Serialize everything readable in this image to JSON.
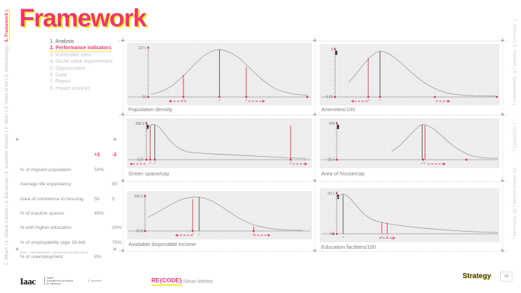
{
  "header": {
    "title": "Framework"
  },
  "rails": {
    "left_before": "1. What? | 2. Global Context | 3. Barcelona | 4. Scientific Interest | 3. How? | 4. State of Art | 5. Methodology | ",
    "left_active": "6. Framework |",
    "right_top": "7. Protocol |  8. Platform |  9. Stakeholders |",
    "right_mid": "... | RE(CODE) |...",
    "right_bottom": "14. Global outlook |  15. Reflection |",
    "page_number": "26"
  },
  "menu": {
    "items": [
      {
        "label": "1. Analysis",
        "state": "first"
      },
      {
        "label": "2. Performance indicators",
        "state": "active"
      },
      {
        "label": "3. Vulnerable sites",
        "state": "dim"
      },
      {
        "label": "4. Social value improvement",
        "state": "dim"
      },
      {
        "label": "5. Opportunities",
        "state": "dim"
      },
      {
        "label": "6. Case",
        "state": "dim"
      },
      {
        "label": "7. Report",
        "state": "dim"
      },
      {
        "label": "8. Impact analysis",
        "state": "dim"
      }
    ]
  },
  "table": {
    "col_plus": "+2",
    "col_minus": "-2",
    "rows": [
      {
        "label": "% of migrant population",
        "plus2": "50%",
        "minus2": ""
      },
      {
        "label": "Average life expectancy",
        "plus2": "",
        "minus2": "80"
      },
      {
        "label": "Area of commerce to housing",
        "plus2": "50",
        "minus2": "5"
      },
      {
        "label": "% of inactive spaces",
        "plus2": "40%",
        "minus2": ""
      },
      {
        "label": "% with higher education",
        "plus2": "",
        "minus2": "20%"
      },
      {
        "label": "% of employability (age 16-64)",
        "plus2": "",
        "minus2": "70%"
      },
      {
        "label": "% of unemployment",
        "plus2": "8%",
        "minus2": ""
      }
    ],
    "source": "Data : OpendataBCN, Ajuntament de Barcelona"
  },
  "footer": {
    "logo_text": "Iaac",
    "logo_sub_lines": [
      "institut",
      "d'arquitectura avançada",
      "de catalunya"
    ],
    "logo_sub2": "barcelona",
    "brand": "RE{CODE}",
    "author": "Nihar Mehta",
    "strategy": "Strategy"
  },
  "colors": {
    "accent_pink": "#e8396b",
    "accent_yellow": "#f7e843",
    "marker_red": "#d9304b",
    "arrow_pink": "#ec2d7d",
    "curve_gray": "#a3a3a3",
    "dark_line": "#4a4a4a",
    "panel_bg": "#ededed"
  },
  "chart_data": [
    {
      "id": "population-density",
      "title": "Population density",
      "type": "distribution",
      "y_top": "1371",
      "y_bottom": "19",
      "axis_x": 0.115,
      "smudge": false,
      "curve": [
        [
          0.13,
          0.05
        ],
        [
          0.17,
          0.09
        ],
        [
          0.21,
          0.15
        ],
        [
          0.25,
          0.24
        ],
        [
          0.29,
          0.37
        ],
        [
          0.33,
          0.52
        ],
        [
          0.37,
          0.67
        ],
        [
          0.41,
          0.81
        ],
        [
          0.45,
          0.9
        ],
        [
          0.48,
          0.94
        ],
        [
          0.5,
          0.95
        ],
        [
          0.53,
          0.93
        ],
        [
          0.57,
          0.87
        ],
        [
          0.61,
          0.77
        ],
        [
          0.65,
          0.63
        ],
        [
          0.69,
          0.49
        ],
        [
          0.73,
          0.35
        ],
        [
          0.77,
          0.24
        ],
        [
          0.81,
          0.15
        ],
        [
          0.85,
          0.1
        ],
        [
          0.9,
          0.06
        ],
        [
          0.95,
          0.04
        ],
        [
          0.975,
          0.035
        ]
      ],
      "vlines": [
        {
          "x": 0.5,
          "h": 0.95,
          "c": "dark"
        },
        {
          "x": 0.305,
          "h": 0.44,
          "c": "red"
        },
        {
          "x": 0.645,
          "h": 0.6,
          "c": "red"
        }
      ],
      "dots": [
        0.115,
        0.305,
        0.5,
        0.645,
        0.975
      ],
      "arrows": [
        {
          "x1": 0.32,
          "x2": 0.225,
          "dir": "left"
        },
        {
          "x1": 0.657,
          "x2": 0.745,
          "dir": "right"
        }
      ]
    },
    {
      "id": "amenities",
      "title": "Amenities/100",
      "type": "distribution",
      "y_top": "9",
      "y_bottom": "0.03",
      "axis_x": 0.085,
      "smudge": true,
      "curve": [
        [
          0.16,
          0.3
        ],
        [
          0.19,
          0.42
        ],
        [
          0.22,
          0.56
        ],
        [
          0.25,
          0.7
        ],
        [
          0.28,
          0.82
        ],
        [
          0.31,
          0.91
        ],
        [
          0.335,
          0.945
        ],
        [
          0.36,
          0.93
        ],
        [
          0.39,
          0.88
        ],
        [
          0.42,
          0.8
        ],
        [
          0.46,
          0.68
        ],
        [
          0.5,
          0.54
        ],
        [
          0.54,
          0.41
        ],
        [
          0.58,
          0.3
        ],
        [
          0.62,
          0.21
        ],
        [
          0.66,
          0.14
        ],
        [
          0.7,
          0.09
        ],
        [
          0.75,
          0.055
        ],
        [
          0.8,
          0.035
        ],
        [
          0.86,
          0.025
        ],
        [
          0.92,
          0.02
        ],
        [
          0.98,
          0.018
        ]
      ],
      "vlines": [
        {
          "x": 0.27,
          "h": 0.8,
          "c": "red"
        },
        {
          "x": 0.335,
          "h": 0.945,
          "c": "dark"
        }
      ],
      "dots": [
        0.085,
        0.27,
        0.335,
        0.64,
        0.985
      ],
      "arrows": [
        {
          "x1": 0.265,
          "x2": 0.175,
          "dir": "left"
        },
        {
          "x1": 0.645,
          "x2": 0.725,
          "dir": "right"
        }
      ]
    },
    {
      "id": "green-space",
      "title": "Green space/cap",
      "type": "distribution",
      "y_top": "388.9",
      "y_bottom": "0.57",
      "axis_x": 0.105,
      "smudge": true,
      "curve": [
        [
          0.105,
          0.78
        ],
        [
          0.12,
          0.9
        ],
        [
          0.135,
          0.95
        ],
        [
          0.155,
          0.94
        ],
        [
          0.175,
          0.87
        ],
        [
          0.2,
          0.72
        ],
        [
          0.23,
          0.53
        ],
        [
          0.26,
          0.38
        ],
        [
          0.29,
          0.28
        ],
        [
          0.32,
          0.22
        ],
        [
          0.36,
          0.19
        ],
        [
          0.42,
          0.17
        ],
        [
          0.5,
          0.145
        ],
        [
          0.58,
          0.125
        ],
        [
          0.66,
          0.105
        ],
        [
          0.74,
          0.085
        ],
        [
          0.82,
          0.065
        ],
        [
          0.9,
          0.045
        ],
        [
          0.97,
          0.03
        ]
      ],
      "vlines": [
        {
          "x": 0.125,
          "h": 0.92,
          "c": "red"
        },
        {
          "x": 0.15,
          "h": 0.94,
          "c": "dark"
        },
        {
          "x": 0.885,
          "h": 0.92,
          "c": "red"
        }
      ],
      "dots": [
        0.105,
        0.125,
        0.15,
        0.885
      ],
      "arrows": [
        {
          "x1": 0.1,
          "x2": 0.015,
          "dir": "left"
        },
        {
          "x1": 0.895,
          "x2": 0.975,
          "dir": "right"
        }
      ]
    },
    {
      "id": "area-house",
      "title": "Area of house/cap",
      "type": "distribution",
      "y_top": "504",
      "y_bottom": "20.3",
      "axis_x": 0.095,
      "smudge": true,
      "curve": [
        [
          0.4,
          0.22
        ],
        [
          0.44,
          0.36
        ],
        [
          0.47,
          0.5
        ],
        [
          0.5,
          0.66
        ],
        [
          0.53,
          0.81
        ],
        [
          0.555,
          0.91
        ],
        [
          0.575,
          0.95
        ],
        [
          0.6,
          0.92
        ],
        [
          0.63,
          0.84
        ],
        [
          0.66,
          0.72
        ],
        [
          0.7,
          0.55
        ],
        [
          0.74,
          0.38
        ],
        [
          0.78,
          0.25
        ],
        [
          0.82,
          0.15
        ],
        [
          0.86,
          0.09
        ],
        [
          0.9,
          0.055
        ],
        [
          0.94,
          0.04
        ],
        [
          0.99,
          0.035
        ]
      ],
      "vlines": [
        {
          "x": 0.57,
          "h": 0.95,
          "c": "dark"
        },
        {
          "x": 0.585,
          "h": 0.93,
          "c": "red"
        }
      ],
      "dots": [
        0.095,
        0.575,
        0.815
      ],
      "arrows": [
        {
          "x1": 0.6,
          "x2": 0.7,
          "dir": "right"
        }
      ]
    },
    {
      "id": "disposable-income",
      "title": "Available disposable income",
      "type": "distribution",
      "y_top": "245.5",
      "y_bottom": "16.6",
      "axis_x": 0.097,
      "smudge": false,
      "curve": [
        [
          0.11,
          0.38
        ],
        [
          0.15,
          0.48
        ],
        [
          0.19,
          0.6
        ],
        [
          0.23,
          0.72
        ],
        [
          0.27,
          0.83
        ],
        [
          0.31,
          0.91
        ],
        [
          0.35,
          0.95
        ],
        [
          0.385,
          0.955
        ],
        [
          0.42,
          0.92
        ],
        [
          0.46,
          0.84
        ],
        [
          0.5,
          0.72
        ],
        [
          0.54,
          0.58
        ],
        [
          0.58,
          0.44
        ],
        [
          0.62,
          0.32
        ],
        [
          0.66,
          0.22
        ],
        [
          0.7,
          0.15
        ],
        [
          0.74,
          0.1
        ],
        [
          0.78,
          0.065
        ],
        [
          0.83,
          0.04
        ],
        [
          0.89,
          0.025
        ],
        [
          0.95,
          0.02
        ]
      ],
      "vlines": [
        {
          "x": 0.355,
          "h": 0.89,
          "c": "red"
        },
        {
          "x": 0.39,
          "h": 0.95,
          "c": "dark"
        },
        {
          "x": 0.685,
          "h": 0.13,
          "c": "red"
        }
      ],
      "dots": [
        0.097,
        0.355,
        0.685
      ],
      "arrows": [
        {
          "x1": 0.355,
          "x2": 0.26,
          "dir": "left"
        },
        {
          "x1": 0.685,
          "x2": 0.775,
          "dir": "right"
        }
      ]
    },
    {
      "id": "education-facilities",
      "title": "Education facilities/100",
      "type": "distribution",
      "y_top": "59.1",
      "y_bottom": "0.2",
      "axis_x": 0.095,
      "smudge": true,
      "curve": [
        [
          0.095,
          0.84
        ],
        [
          0.11,
          0.93
        ],
        [
          0.13,
          0.965
        ],
        [
          0.15,
          0.93
        ],
        [
          0.17,
          0.85
        ],
        [
          0.2,
          0.7
        ],
        [
          0.23,
          0.55
        ],
        [
          0.26,
          0.43
        ],
        [
          0.29,
          0.35
        ],
        [
          0.32,
          0.3
        ],
        [
          0.36,
          0.26
        ],
        [
          0.4,
          0.23
        ],
        [
          0.45,
          0.2
        ],
        [
          0.52,
          0.165
        ],
        [
          0.6,
          0.13
        ],
        [
          0.68,
          0.1
        ],
        [
          0.76,
          0.075
        ],
        [
          0.84,
          0.055
        ],
        [
          0.92,
          0.04
        ],
        [
          0.99,
          0.03
        ]
      ],
      "vlines": [
        {
          "x": 0.13,
          "h": 0.95,
          "c": "dark"
        },
        {
          "x": 0.345,
          "h": 0.27,
          "c": "red"
        },
        {
          "x": 0.375,
          "h": 0.27,
          "c": "red"
        }
      ],
      "dots": [
        0.075
      ],
      "arrows": [
        {
          "x1": 0.33,
          "x2": 0.42,
          "dir": "right"
        }
      ]
    }
  ]
}
